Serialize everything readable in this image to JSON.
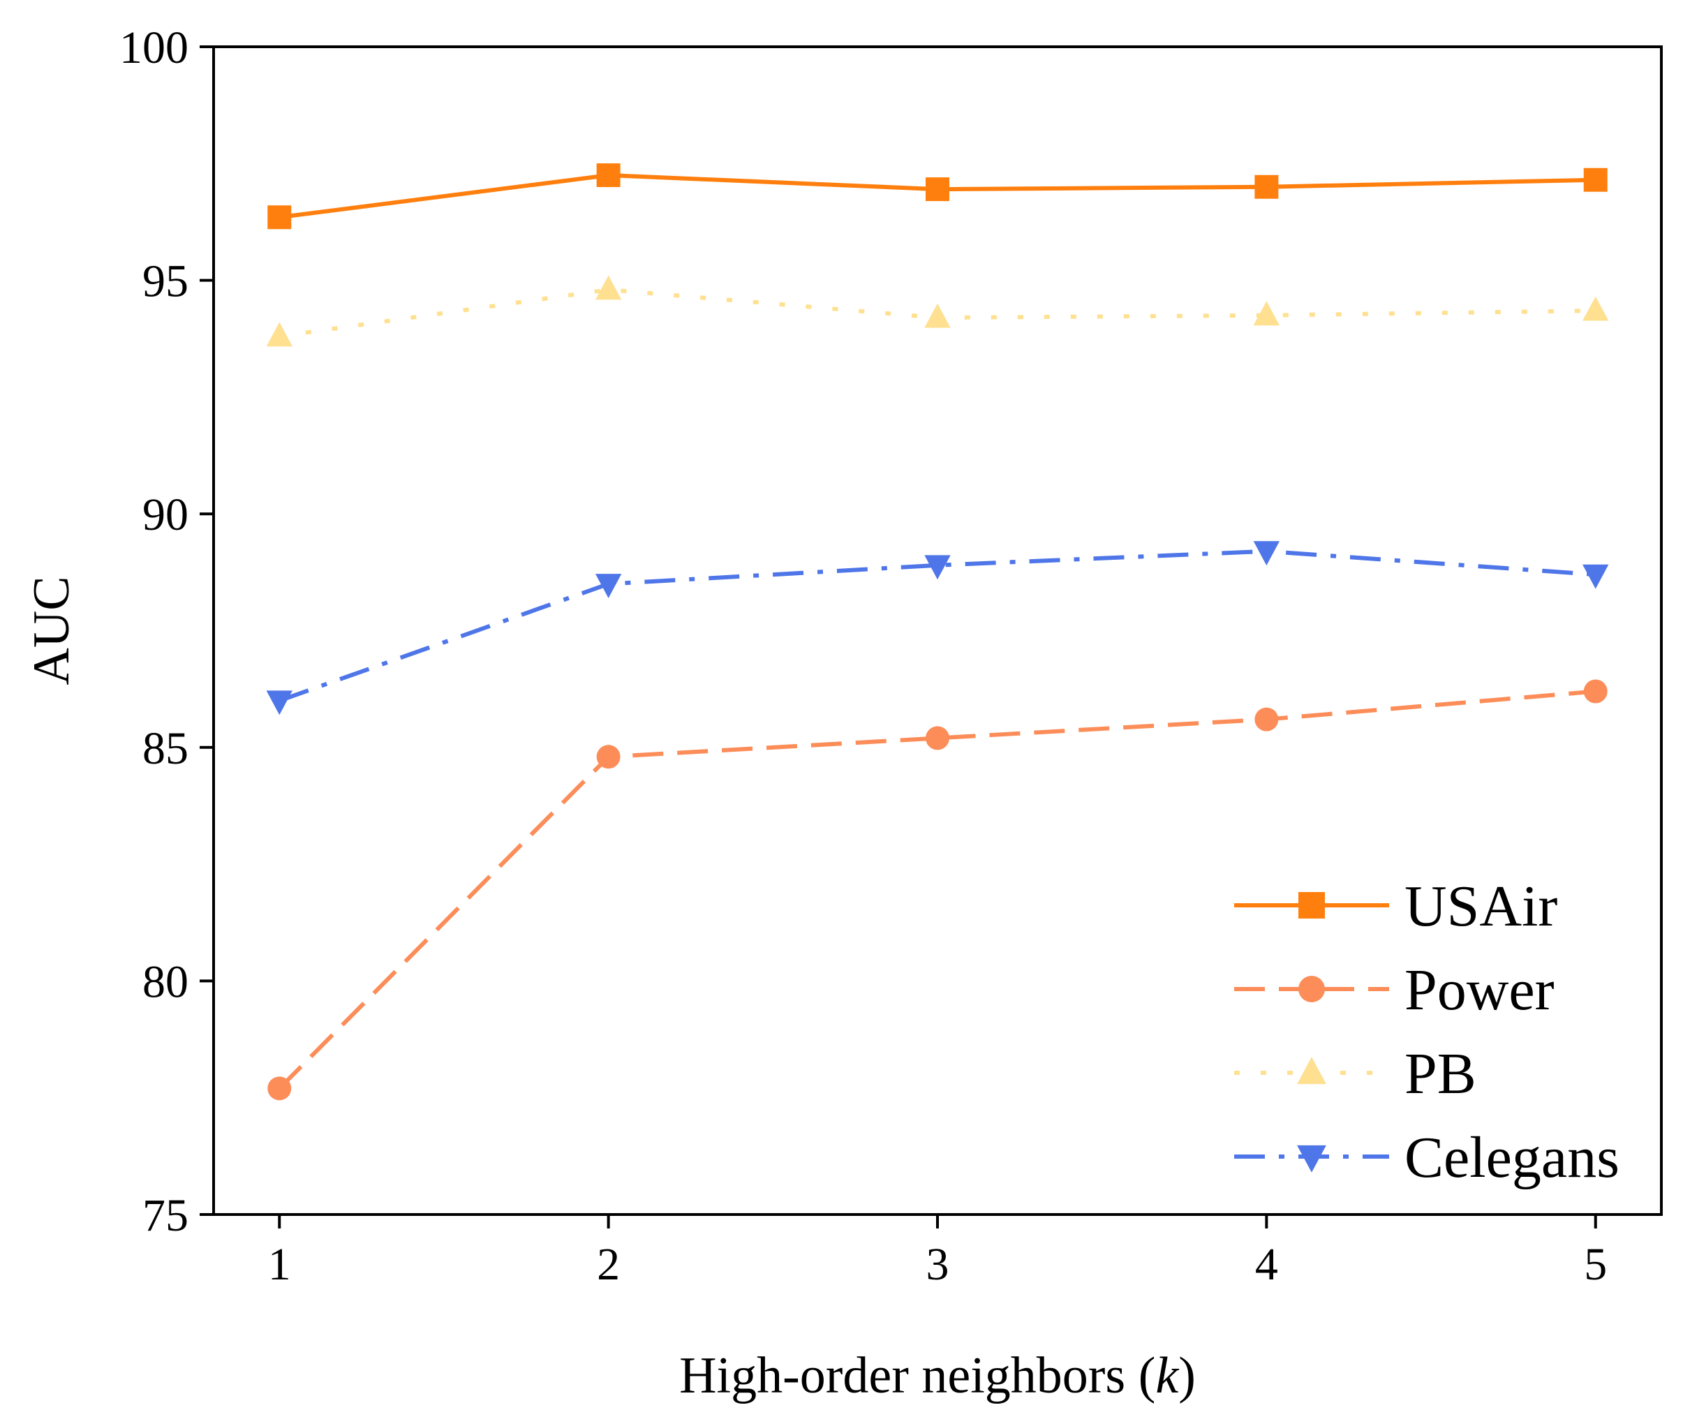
{
  "chart_data": {
    "type": "line",
    "title": "",
    "xlabel": "High-order neighbors (k)",
    "xlabel_parts": {
      "prefix": "High-order neighbors (",
      "italic": "k",
      "suffix": ")"
    },
    "ylabel": "AUC",
    "x": [
      1,
      2,
      3,
      4,
      5
    ],
    "x_tick_labels": [
      "1",
      "2",
      "3",
      "4",
      "5"
    ],
    "xlim": [
      0.8,
      5.2
    ],
    "ylim": [
      75,
      100
    ],
    "y_ticks": [
      75,
      80,
      85,
      90,
      95,
      100
    ],
    "y_tick_labels": [
      "75",
      "80",
      "85",
      "90",
      "95",
      "100"
    ],
    "grid": false,
    "legend_position": "bottom-right",
    "series": [
      {
        "name": "USAir",
        "values": [
          96.35,
          97.25,
          96.95,
          97.0,
          97.15
        ],
        "color": "#ff7f0e",
        "line": "solid",
        "marker": "square"
      },
      {
        "name": "Power",
        "values": [
          77.7,
          84.8,
          85.2,
          85.6,
          86.2
        ],
        "color": "#fc8d59",
        "line": "dashed",
        "marker": "circle"
      },
      {
        "name": "PB",
        "values": [
          93.8,
          94.8,
          94.2,
          94.25,
          94.35
        ],
        "color": "#fee090",
        "line": "dotted",
        "marker": "triangle-up"
      },
      {
        "name": "Celegans",
        "values": [
          86.0,
          88.5,
          88.9,
          89.2,
          88.7
        ],
        "color": "#4f76e8",
        "line": "dashdot",
        "marker": "triangle-down"
      }
    ]
  }
}
